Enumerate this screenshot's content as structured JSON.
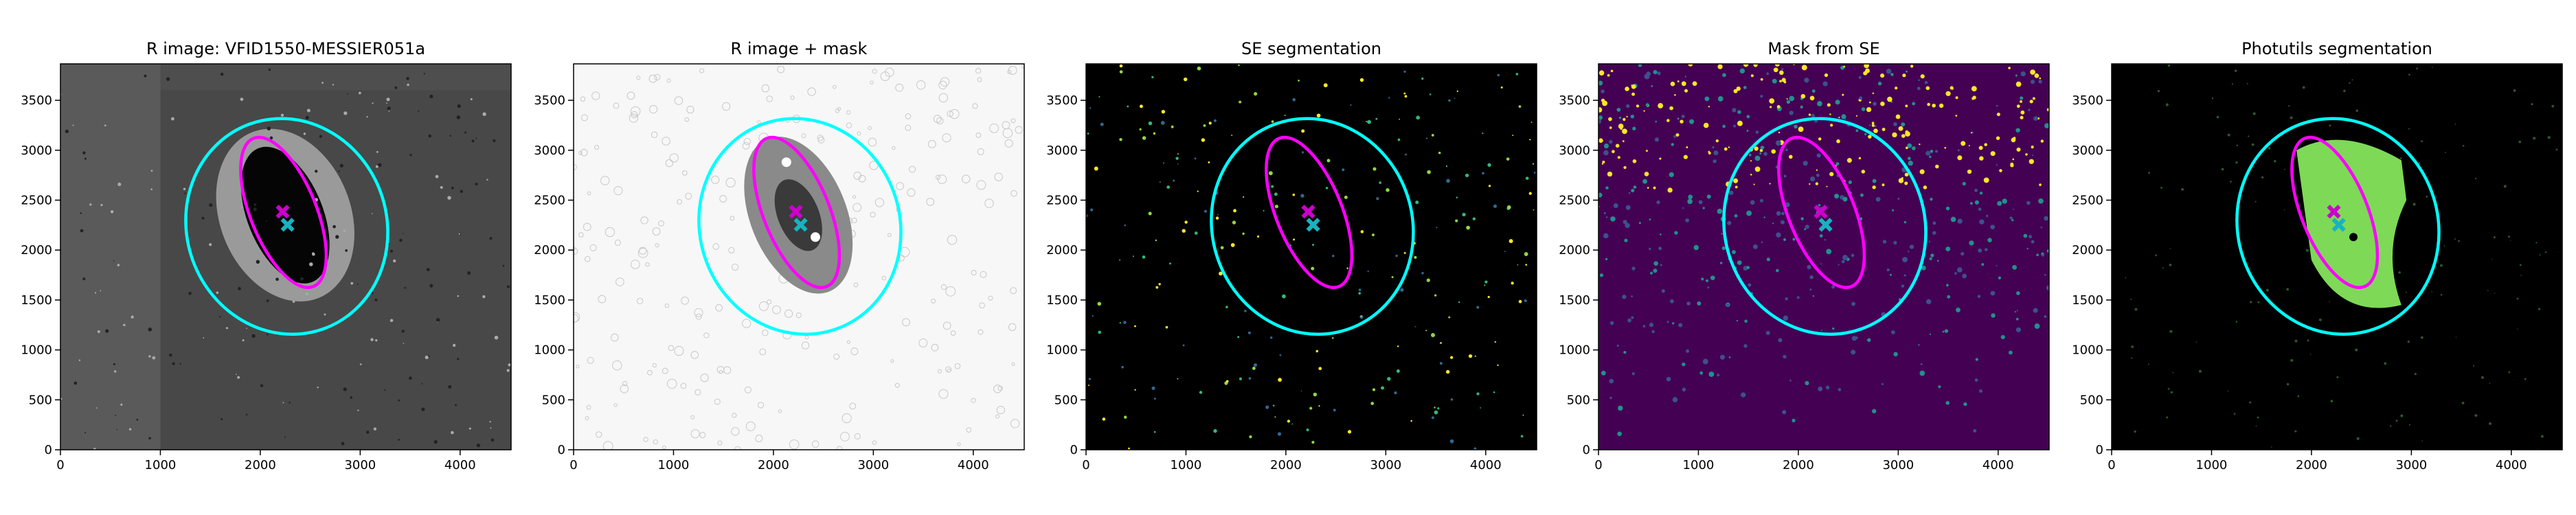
{
  "chart_data": [
    {
      "type": "image",
      "title": "R image: VFID1550-MESSIER051a",
      "xlim": [
        0,
        4510
      ],
      "ylim": [
        0,
        3865
      ],
      "xticks": [
        0,
        1000,
        2000,
        3000,
        4000
      ],
      "yticks": [
        0,
        500,
        1000,
        1500,
        2000,
        2500,
        3000,
        3500
      ],
      "ellipses": [
        {
          "color": "#00ffff",
          "cx": 2265,
          "cy": 2237,
          "rx": 1000,
          "ry": 1090,
          "angle": 20
        },
        {
          "color": "#ff00ff",
          "cx": 2232,
          "cy": 2377,
          "rx": 330,
          "ry": 800,
          "angle": 22
        }
      ],
      "markers": [
        {
          "color": "#cc00cc",
          "x": 2224,
          "y": 2385
        },
        {
          "color": "#17b3c0",
          "x": 2273,
          "y": 2253
        }
      ]
    },
    {
      "type": "image",
      "title": "R image + mask",
      "xlim": [
        0,
        4510
      ],
      "ylim": [
        0,
        3865
      ],
      "xticks": [
        0,
        1000,
        2000,
        3000,
        4000
      ],
      "yticks": [
        0,
        500,
        1000,
        1500,
        2000,
        2500,
        3000,
        3500
      ],
      "ellipses": [
        {
          "color": "#00ffff",
          "cx": 2265,
          "cy": 2237,
          "rx": 1000,
          "ry": 1090,
          "angle": 20
        },
        {
          "color": "#ff00ff",
          "cx": 2232,
          "cy": 2377,
          "rx": 330,
          "ry": 800,
          "angle": 22
        }
      ],
      "markers": [
        {
          "color": "#cc00cc",
          "x": 2224,
          "y": 2385
        },
        {
          "color": "#17b3c0",
          "x": 2273,
          "y": 2253
        }
      ]
    },
    {
      "type": "image",
      "title": "SE segmentation",
      "xlim": [
        0,
        4510
      ],
      "ylim": [
        0,
        3865
      ],
      "xticks": [
        0,
        1000,
        2000,
        3000,
        4000
      ],
      "yticks": [
        0,
        500,
        1000,
        1500,
        2000,
        2500,
        3000,
        3500
      ],
      "ellipses": [
        {
          "color": "#00ffff",
          "cx": 2265,
          "cy": 2237,
          "rx": 1000,
          "ry": 1090,
          "angle": 20
        },
        {
          "color": "#ff00ff",
          "cx": 2232,
          "cy": 2377,
          "rx": 330,
          "ry": 800,
          "angle": 22
        }
      ],
      "markers": [
        {
          "color": "#cc00cc",
          "x": 2224,
          "y": 2385
        },
        {
          "color": "#17b3c0",
          "x": 2273,
          "y": 2253
        }
      ]
    },
    {
      "type": "image",
      "title": "Mask from SE",
      "xlim": [
        0,
        4510
      ],
      "ylim": [
        0,
        3865
      ],
      "xticks": [
        0,
        1000,
        2000,
        3000,
        4000
      ],
      "yticks": [
        0,
        500,
        1000,
        1500,
        2000,
        2500,
        3000,
        3500
      ],
      "ellipses": [
        {
          "color": "#00ffff",
          "cx": 2265,
          "cy": 2237,
          "rx": 1000,
          "ry": 1090,
          "angle": 20
        },
        {
          "color": "#ff00ff",
          "cx": 2232,
          "cy": 2377,
          "rx": 330,
          "ry": 800,
          "angle": 22
        }
      ],
      "markers": [
        {
          "color": "#cc00cc",
          "x": 2224,
          "y": 2385
        },
        {
          "color": "#17b3c0",
          "x": 2273,
          "y": 2253
        }
      ]
    },
    {
      "type": "image",
      "title": "Photutils segmentation",
      "xlim": [
        0,
        4510
      ],
      "ylim": [
        0,
        3865
      ],
      "xticks": [
        0,
        1000,
        2000,
        3000,
        4000
      ],
      "yticks": [
        0,
        500,
        1000,
        1500,
        2000,
        2500,
        3000,
        3500
      ],
      "ellipses": [
        {
          "color": "#00ffff",
          "cx": 2265,
          "cy": 2237,
          "rx": 1000,
          "ry": 1090,
          "angle": 20
        },
        {
          "color": "#ff00ff",
          "cx": 2232,
          "cy": 2377,
          "rx": 330,
          "ry": 800,
          "angle": 22
        }
      ],
      "markers": [
        {
          "color": "#cc00cc",
          "x": 2224,
          "y": 2385
        },
        {
          "color": "#17b3c0",
          "x": 2273,
          "y": 2253
        }
      ]
    }
  ]
}
